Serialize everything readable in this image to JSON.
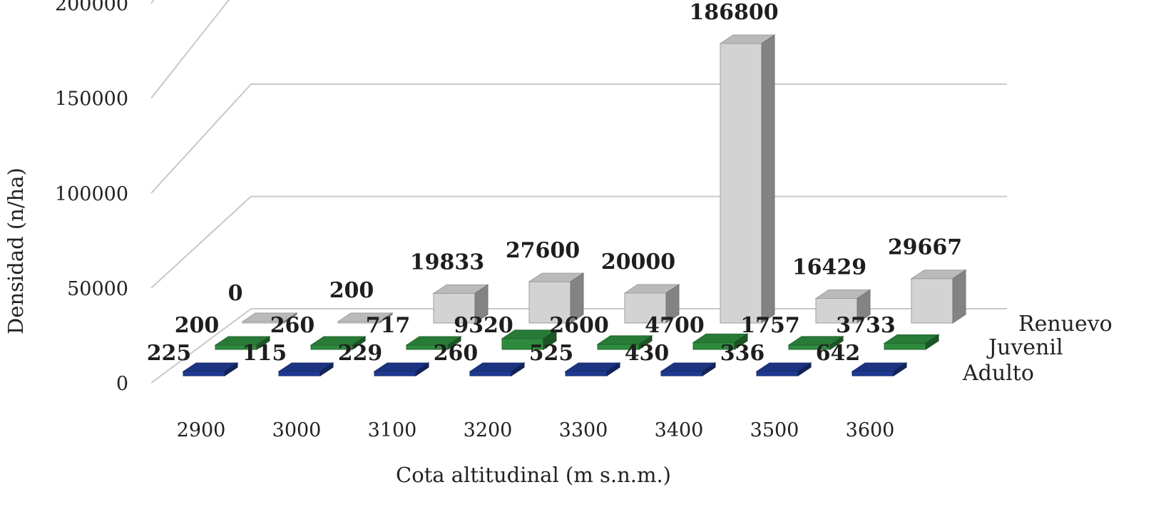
{
  "chart_data": {
    "type": "bar",
    "style": "3d-column",
    "categories": [
      "2900",
      "3000",
      "3100",
      "3200",
      "3300",
      "3400",
      "3500",
      "3600"
    ],
    "series": [
      {
        "name": "Renuevo",
        "values": [
          0,
          200,
          19833,
          27600,
          20000,
          186800,
          16429,
          29667
        ],
        "color": "#d3d3d3"
      },
      {
        "name": "Juvenil",
        "values": [
          200,
          260,
          717,
          9320,
          2600,
          4700,
          1757,
          3733
        ],
        "color": "#2e8b3e"
      },
      {
        "name": "Adulto",
        "values": [
          225,
          115,
          229,
          260,
          525,
          430,
          336,
          642
        ],
        "color": "#1f3a93"
      }
    ],
    "xlabel": "Cota altitudinal (m s.n.m.)",
    "ylabel": "Densidad (n/ha)",
    "ylim": [
      0,
      200000
    ],
    "yticks": [
      0,
      50000,
      100000,
      150000,
      200000
    ],
    "grid": true,
    "legend": "series labels at right end of depth rows"
  }
}
